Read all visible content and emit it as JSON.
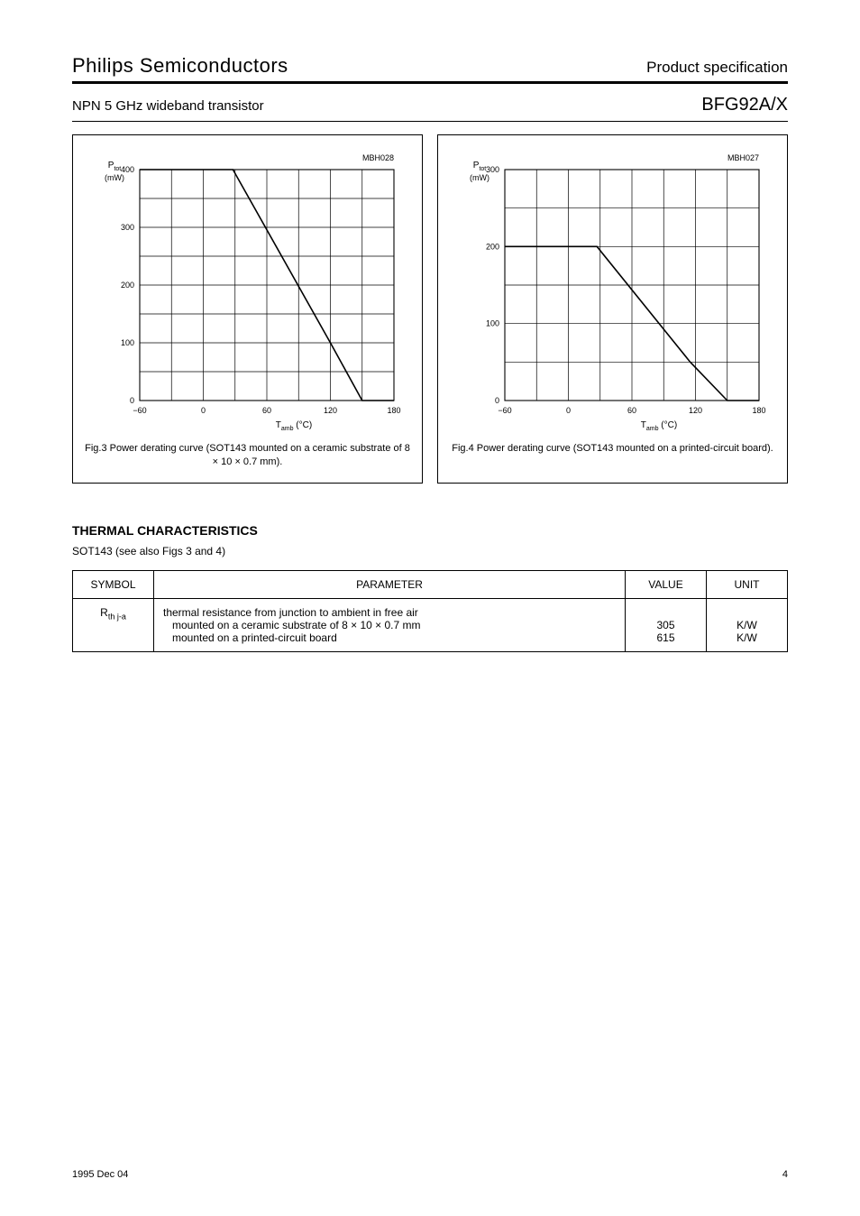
{
  "header": {
    "brand": "Philips Semiconductors",
    "prod_desc": "Product specification",
    "part_desc": "NPN 5 GHz wideband transistor",
    "part_no": "BFG92A/X"
  },
  "figures": {
    "fig3": {
      "type": "line",
      "title": "MBH028",
      "xlabel": "Tamb (°C)",
      "ylabel": "Ptot (mW)",
      "xlim": [
        -60,
        180
      ],
      "ylim": [
        0,
        400
      ],
      "xtick_step": 30,
      "ytick_step": 50,
      "x_ticks": [
        0,
        60,
        120,
        180
      ],
      "x_tick_labels": [
        "0",
        "60",
        "120",
        "180"
      ],
      "y_ticks": [
        0,
        100,
        200,
        300,
        400
      ],
      "y_tick_labels": [
        "0",
        "100",
        "200",
        "300",
        "400"
      ],
      "neg_x_tick": -60,
      "neg_x_label": "−60",
      "data_x": [
        -60,
        28,
        120,
        150,
        180
      ],
      "data_y": [
        400,
        400,
        100,
        0,
        0
      ],
      "line_color": "#000000",
      "grid_color": "#000000",
      "background_color": "#ffffff",
      "caption": "Fig.3  Power derating curve (SOT143 mounted on a ceramic substrate of 8 × 10 × 0.7 mm)."
    },
    "fig4": {
      "type": "line",
      "title": "MBH027",
      "xlabel": "Tamb (°C)",
      "ylabel": "Ptot (mW)",
      "xlim": [
        -60,
        180
      ],
      "ylim": [
        0,
        300
      ],
      "xtick_step": 30,
      "ytick_step": 50,
      "x_ticks": [
        0,
        60,
        120,
        180
      ],
      "x_tick_labels": [
        "0",
        "60",
        "120",
        "180"
      ],
      "y_ticks": [
        0,
        100,
        200,
        300
      ],
      "y_tick_labels": [
        "0",
        "100",
        "200",
        "300"
      ],
      "neg_x_tick": -60,
      "neg_x_label": "−60",
      "data_x": [
        -60,
        27,
        115,
        150,
        180
      ],
      "data_y": [
        200,
        200,
        50,
        0,
        0
      ],
      "line_color": "#000000",
      "grid_color": "#000000",
      "background_color": "#ffffff",
      "caption": "Fig.4  Power derating curve (SOT143 mounted on a printed-circuit board)."
    }
  },
  "thermal": {
    "section_title": "THERMAL CHARACTERISTICS",
    "section_sub_prefix": "SOT143 (see also Figs ",
    "section_sub_links": "3 and 4",
    "section_sub_suffix": ")",
    "columns": [
      "SYMBOL",
      "PARAMETER",
      "VALUE",
      "UNIT"
    ],
    "rows": [
      {
        "symbol": "Rth j-a",
        "param_lines": [
          "thermal resistance from junction to ambient in free air",
          "  mounted on a ceramic substrate of 8 × 10 × 0.7 mm",
          "  mounted on a printed-circuit board"
        ],
        "value_lines": [
          "",
          "305",
          "615"
        ],
        "unit_lines": [
          "",
          "K/W",
          "K/W"
        ]
      }
    ]
  },
  "footer": {
    "date": "1995 Dec 04",
    "page": "4"
  }
}
